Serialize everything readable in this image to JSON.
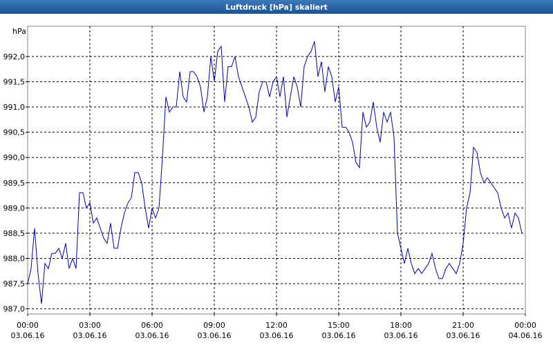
{
  "chart_data": {
    "type": "line",
    "title": "Luftdruck [hPa] skaliert",
    "ylabel": "hPa",
    "x": [
      0,
      10,
      20,
      30,
      40,
      50,
      60,
      70,
      80,
      90,
      100,
      110,
      120,
      130,
      140,
      150,
      160,
      170,
      180,
      190,
      200,
      210,
      220,
      230,
      240,
      250,
      260,
      270,
      280,
      290,
      300,
      310,
      320,
      330,
      340,
      350,
      360,
      370,
      380,
      390,
      400,
      410,
      420,
      430,
      440,
      450,
      460,
      470,
      480,
      490,
      500,
      510,
      520,
      530,
      540,
      550,
      560,
      570,
      580,
      590,
      600,
      610,
      620,
      630,
      640,
      650,
      660,
      670,
      680,
      690,
      700,
      710,
      720,
      730,
      740,
      750,
      760,
      770,
      780,
      790,
      800,
      810,
      820,
      830,
      840,
      850,
      860,
      870,
      880,
      890,
      900,
      910,
      920,
      930,
      940,
      950,
      960,
      970,
      980,
      990,
      1000,
      1010,
      1020,
      1030,
      1040,
      1050,
      1060,
      1070,
      1080,
      1090,
      1100,
      1110,
      1120,
      1130,
      1140,
      1150,
      1160,
      1170,
      1180,
      1190,
      1200,
      1210,
      1220,
      1230,
      1240,
      1250,
      1260,
      1270,
      1280,
      1290,
      1300,
      1310,
      1320,
      1330,
      1340,
      1350,
      1360,
      1370,
      1380,
      1390,
      1400,
      1410,
      1420,
      1430
    ],
    "series": [
      {
        "name": "Luftdruck",
        "color": "#0000a8",
        "values": [
          987.5,
          987.8,
          988.6,
          987.7,
          987.1,
          987.9,
          987.8,
          988.1,
          988.1,
          988.2,
          988.0,
          988.3,
          987.8,
          988.0,
          987.8,
          989.3,
          989.3,
          989.0,
          989.1,
          988.7,
          988.8,
          988.6,
          988.4,
          988.3,
          988.7,
          988.2,
          988.2,
          988.6,
          988.9,
          989.1,
          989.2,
          989.7,
          989.7,
          989.5,
          989.0,
          988.6,
          989.0,
          988.8,
          989.0,
          990.0,
          991.2,
          990.9,
          991.0,
          991.0,
          991.7,
          991.2,
          991.1,
          991.7,
          991.7,
          991.6,
          991.4,
          990.9,
          991.2,
          992.0,
          991.5,
          992.1,
          992.2,
          991.1,
          991.8,
          991.8,
          992.0,
          991.6,
          991.4,
          991.2,
          991.0,
          990.7,
          990.8,
          991.3,
          991.5,
          991.5,
          991.2,
          991.5,
          991.6,
          991.2,
          991.6,
          990.8,
          991.2,
          991.6,
          991.4,
          991.0,
          991.8,
          992.0,
          992.1,
          992.3,
          991.6,
          991.9,
          991.3,
          991.8,
          991.6,
          991.1,
          991.4,
          990.6,
          990.6,
          990.5,
          990.3,
          989.9,
          989.8,
          990.9,
          990.6,
          990.7,
          991.1,
          990.6,
          990.3,
          990.9,
          990.7,
          990.9,
          990.4,
          988.5,
          988.2,
          987.9,
          988.2,
          987.9,
          987.7,
          987.8,
          987.7,
          987.8,
          987.9,
          988.1,
          987.8,
          987.6,
          987.6,
          987.8,
          987.9,
          987.8,
          987.7,
          987.9,
          988.3,
          989.0,
          989.3,
          990.2,
          990.1,
          989.7,
          989.5,
          989.6,
          989.5,
          989.4,
          989.3,
          989.0,
          988.8,
          988.9,
          988.6,
          988.9,
          988.8,
          988.5
        ]
      }
    ],
    "xlim": [
      0,
      1440
    ],
    "xticks": [
      {
        "value": 0,
        "label": "00:00 03.06.16"
      },
      {
        "value": 180,
        "label": "03:00 03.06.16"
      },
      {
        "value": 360,
        "label": "06:00 03.06.16"
      },
      {
        "value": 540,
        "label": "09:00 03.06.16"
      },
      {
        "value": 720,
        "label": "12:00 03.06.16"
      },
      {
        "value": 900,
        "label": "15:00 03.06.16"
      },
      {
        "value": 1080,
        "label": "18:00 03.06.16"
      },
      {
        "value": 1260,
        "label": "21:00 03.06.16"
      },
      {
        "value": 1440,
        "label": "00:00 04.06.16"
      }
    ],
    "ylim": [
      986.9,
      992.6
    ],
    "yticks": [
      {
        "value": 987,
        "label": "987,0"
      },
      {
        "value": 987.5,
        "label": "987,5"
      },
      {
        "value": 988,
        "label": "988,0"
      },
      {
        "value": 988.5,
        "label": "988,5"
      },
      {
        "value": 989,
        "label": "989,0"
      },
      {
        "value": 989.5,
        "label": "989,5"
      },
      {
        "value": 990,
        "label": "990,0"
      },
      {
        "value": 990.5,
        "label": "990,5"
      },
      {
        "value": 991,
        "label": "991,0"
      },
      {
        "value": 991.5,
        "label": "991,5"
      },
      {
        "value": 992,
        "label": "992,0"
      }
    ],
    "grid": true
  }
}
